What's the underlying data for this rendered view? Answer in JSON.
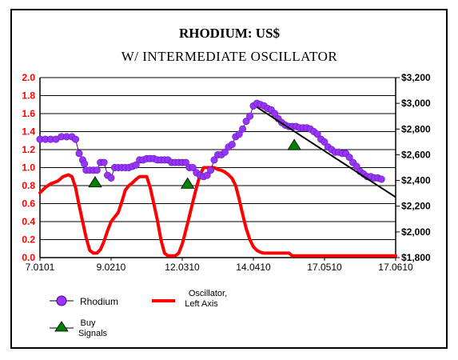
{
  "chart_data": {
    "type": "line",
    "title": "RHODIUM: US$",
    "subtitle": "W/ INTERMEDIATE OSCILLATOR",
    "left_axis": {
      "ylim": [
        0.0,
        2.0
      ],
      "ticks": [
        "0.0",
        "0.2",
        "0.4",
        "0.6",
        "0.8",
        "1.0",
        "1.2",
        "1.4",
        "1.6",
        "1.8",
        "2.0"
      ],
      "color": "#ff0000"
    },
    "right_axis": {
      "ylim": [
        1800,
        3200
      ],
      "ticks": [
        "$1,800",
        "$2,000",
        "$2,200",
        "$2,400",
        "$2,600",
        "$2,800",
        "$3,000",
        "$3,200"
      ]
    },
    "x_ticks": [
      "7.0101",
      "9.0210",
      "12.0310",
      "14.0410",
      "17.0510",
      "17.0610"
    ],
    "x_range": [
      0,
      100
    ],
    "grid": true,
    "legend_placement": "bottom-left",
    "series": [
      {
        "name": "Rhodium",
        "axis": "right",
        "color": "#9933ff",
        "marker": "circle",
        "x": [
          0,
          1.5,
          3,
          4.5,
          6,
          7.5,
          9,
          10,
          11,
          12,
          12.5,
          13,
          14,
          15,
          16,
          17,
          18,
          19,
          20,
          21,
          22,
          23,
          24,
          25,
          26,
          27,
          28,
          29,
          30,
          31,
          32,
          33,
          34,
          35,
          36,
          37,
          38,
          39,
          40,
          41,
          42,
          43,
          44,
          45,
          46,
          47,
          48,
          49,
          50,
          51,
          52,
          53,
          54,
          55,
          56,
          57,
          58,
          59,
          60,
          61,
          62,
          63,
          64,
          65,
          66,
          67,
          68,
          69,
          70,
          71,
          72,
          73,
          74,
          75,
          76,
          77,
          78,
          79,
          80,
          81,
          82,
          83,
          84,
          85,
          86,
          87,
          88,
          89,
          90,
          91,
          92,
          93,
          94,
          95,
          96
        ],
        "values": [
          2720,
          2720,
          2720,
          2720,
          2740,
          2740,
          2740,
          2720,
          2610,
          2560,
          2530,
          2480,
          2480,
          2480,
          2480,
          2540,
          2540,
          2440,
          2420,
          2500,
          2500,
          2500,
          2500,
          2500,
          2510,
          2520,
          2560,
          2560,
          2570,
          2570,
          2570,
          2560,
          2560,
          2560,
          2560,
          2540,
          2540,
          2540,
          2540,
          2540,
          2500,
          2500,
          2460,
          2440,
          2430,
          2440,
          2480,
          2560,
          2600,
          2600,
          2620,
          2660,
          2680,
          2740,
          2760,
          2800,
          2860,
          2900,
          2980,
          3000,
          2990,
          2980,
          2960,
          2950,
          2920,
          2880,
          2850,
          2830,
          2820,
          2820,
          2820,
          2810,
          2810,
          2810,
          2800,
          2780,
          2760,
          2720,
          2700,
          2660,
          2640,
          2620,
          2620,
          2610,
          2610,
          2580,
          2540,
          2510,
          2470,
          2450,
          2430,
          2430,
          2420,
          2420,
          2410
        ]
      },
      {
        "name": "Oscillator, Left Axis",
        "axis": "left",
        "color": "#ff0000",
        "x": [
          0,
          1.5,
          3,
          5,
          6.5,
          8,
          9,
          10,
          11,
          12,
          13,
          14,
          15,
          16,
          17,
          18,
          19,
          20,
          21,
          22,
          23,
          24,
          25,
          26,
          27,
          28,
          30,
          31,
          32,
          33,
          34,
          35,
          36,
          37,
          38,
          39,
          40,
          41,
          42,
          43,
          44,
          45,
          46,
          47,
          48,
          49,
          50,
          51,
          52,
          53,
          54,
          55,
          56,
          57,
          58,
          59,
          60,
          61,
          62,
          63,
          64,
          65,
          66,
          67,
          68,
          69,
          70,
          71,
          72,
          73,
          74,
          75,
          76,
          77,
          78,
          79,
          80,
          81,
          82,
          83,
          84,
          85,
          100
        ],
        "values": [
          0.72,
          0.78,
          0.82,
          0.85,
          0.9,
          0.92,
          0.9,
          0.78,
          0.58,
          0.4,
          0.22,
          0.08,
          0.05,
          0.05,
          0.09,
          0.18,
          0.3,
          0.4,
          0.45,
          0.5,
          0.62,
          0.75,
          0.8,
          0.83,
          0.87,
          0.9,
          0.9,
          0.78,
          0.6,
          0.42,
          0.2,
          0.05,
          0.02,
          0.02,
          0.02,
          0.05,
          0.15,
          0.3,
          0.46,
          0.62,
          0.78,
          0.92,
          1.0,
          1.0,
          1.0,
          1.0,
          0.98,
          0.97,
          0.95,
          0.92,
          0.88,
          0.8,
          0.65,
          0.48,
          0.32,
          0.2,
          0.12,
          0.08,
          0.06,
          0.05,
          0.05,
          0.05,
          0.05,
          0.05,
          0.05,
          0.05,
          0.05,
          0.02,
          0.02,
          0.02,
          0.02,
          0.02,
          0.02,
          0.02,
          0.02,
          0.02,
          0.02,
          0.02,
          0.02,
          0.02,
          0.02,
          0.02,
          0.02
        ]
      },
      {
        "name": "Buy Signals",
        "axis": "right",
        "color": "#008000",
        "marker": "triangle",
        "x": [
          15.5,
          41.5,
          71.5
        ],
        "values": [
          2380,
          2370,
          2670
        ]
      }
    ],
    "trend_line": {
      "axis": "right",
      "x": [
        61,
        100
      ],
      "values": [
        2970,
        2270
      ],
      "color": "#000000"
    }
  },
  "legend": {
    "rhodium": "Rhodium",
    "oscillator_line1": "Oscillator,",
    "oscillator_line2": "Left Axis",
    "buy_line1": "Buy",
    "buy_line2": "Signals"
  }
}
